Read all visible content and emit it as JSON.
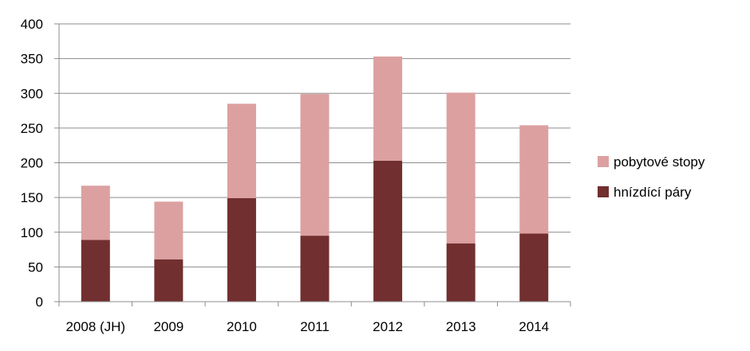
{
  "chart_data": {
    "type": "bar",
    "stacked": true,
    "categories": [
      "2008 (JH)",
      "2009",
      "2010",
      "2011",
      "2012",
      "2013",
      "2014"
    ],
    "series": [
      {
        "name": "hnízdící páry",
        "values": [
          89,
          61,
          149,
          95,
          203,
          84,
          98
        ],
        "color": "#722f2f"
      },
      {
        "name": "pobytové stopy",
        "values": [
          78,
          83,
          136,
          204,
          150,
          217,
          156
        ],
        "color": "#dca0a0"
      }
    ],
    "title": "",
    "xlabel": "",
    "ylabel": "",
    "ylim": [
      0,
      400
    ],
    "yticks": [
      0,
      50,
      100,
      150,
      200,
      250,
      300,
      350,
      400
    ],
    "grid": true,
    "legend_placement": "right"
  }
}
